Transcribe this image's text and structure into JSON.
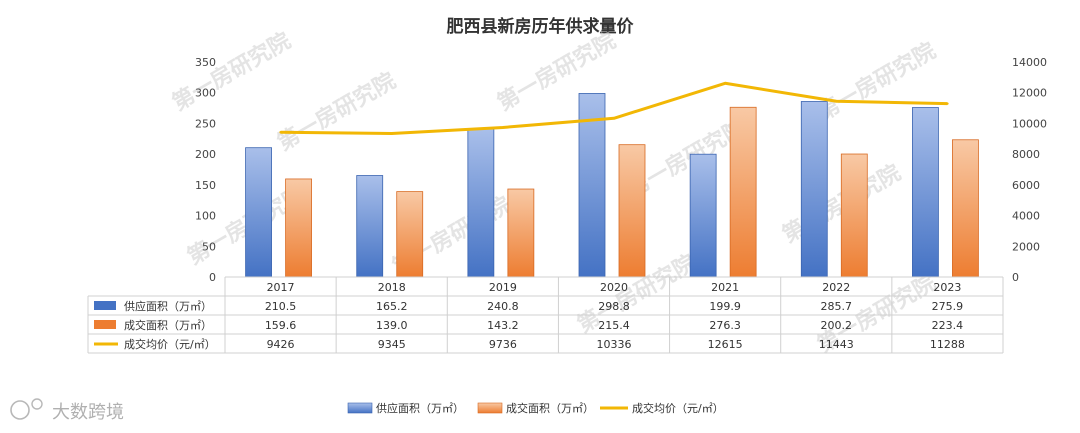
{
  "chart_data": {
    "type": "bar",
    "title": "肥西县新房历年供求量价",
    "categories": [
      "2017",
      "2018",
      "2019",
      "2020",
      "2021",
      "2022",
      "2023"
    ],
    "series": [
      {
        "name": "供应面积（万㎡）",
        "kind": "bar",
        "axis": "left",
        "color": "#4472c4",
        "values": [
          210.5,
          165.2,
          240.8,
          298.8,
          199.9,
          285.7,
          275.9
        ],
        "labels": [
          "210.5",
          "165.2",
          "240.8",
          "298.8",
          "199.9",
          "285.7",
          "275.9"
        ]
      },
      {
        "name": "成交面积（万㎡）",
        "kind": "bar",
        "axis": "left",
        "color": "#ed7d31",
        "values": [
          159.6,
          139.0,
          143.2,
          215.4,
          276.3,
          200.2,
          223.4
        ],
        "labels": [
          "159.6",
          "139.0",
          "143.2",
          "215.4",
          "276.3",
          "200.2",
          "223.4"
        ]
      },
      {
        "name": "成交均价（元/㎡）",
        "kind": "line",
        "axis": "right",
        "color": "#f2b705",
        "values": [
          9426,
          9345,
          9736,
          10336,
          12615,
          11443,
          11288
        ],
        "labels": [
          "9426",
          "9345",
          "9736",
          "10336",
          "12615",
          "11443",
          "11288"
        ]
      }
    ],
    "y_left": {
      "min": 0,
      "max": 350,
      "step": 50,
      "ticks": [
        "0",
        "50",
        "100",
        "150",
        "200",
        "250",
        "300",
        "350"
      ]
    },
    "y_right": {
      "min": 0,
      "max": 14000,
      "step": 2000,
      "ticks": [
        "0",
        "2000",
        "4000",
        "6000",
        "8000",
        "10000",
        "12000",
        "14000"
      ]
    },
    "grid": false,
    "legend_position": "bottom-center",
    "data_table": true
  },
  "watermark": "第一房研究院",
  "logo_text": "大数跨境"
}
